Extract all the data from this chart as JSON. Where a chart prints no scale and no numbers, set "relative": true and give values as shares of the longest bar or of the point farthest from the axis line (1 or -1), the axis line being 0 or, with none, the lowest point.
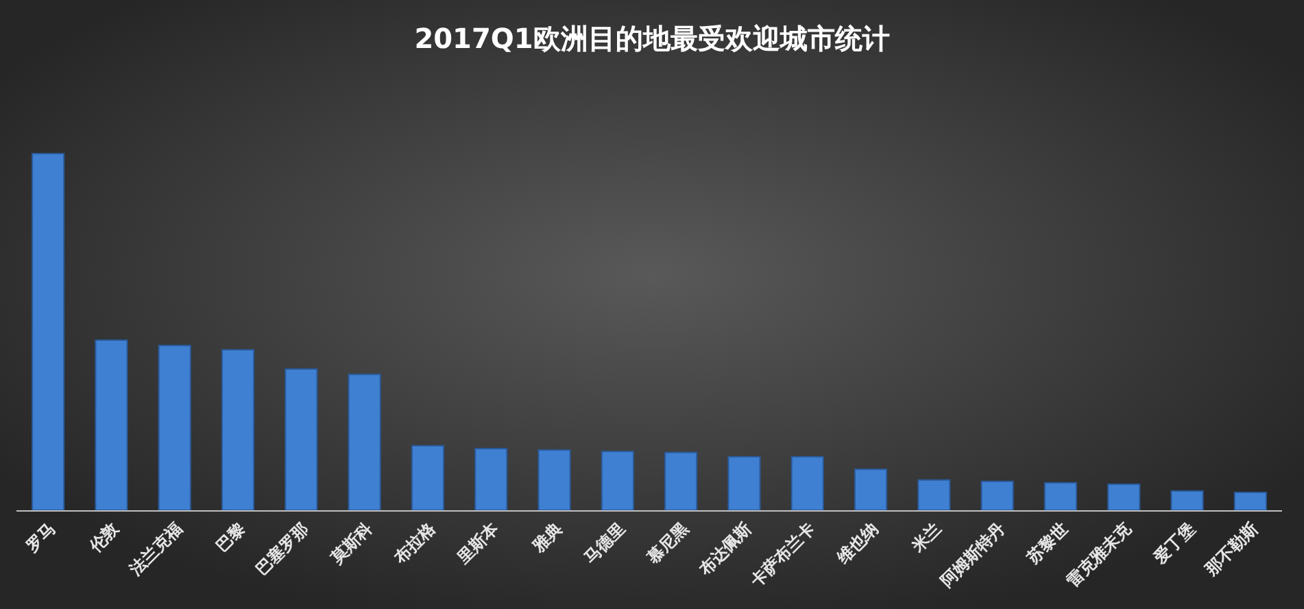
{
  "chart_data": {
    "type": "bar",
    "title": "2017Q1欧洲目的地最受欢迎城市统计",
    "relative": true,
    "color": "#3f80d2",
    "categories": [
      "罗马",
      "伦敦",
      "法兰克福",
      "巴黎",
      "巴塞罗那",
      "莫斯科",
      "布拉格",
      "里斯本",
      "雅典",
      "马德里",
      "慕尼黑",
      "布达佩斯",
      "卡萨布兰卡",
      "维也纳",
      "米兰",
      "阿姆斯特丹",
      "苏黎世",
      "雷克雅未克",
      "爱丁堡",
      "那不勒斯"
    ],
    "values": [
      1,
      0.477,
      0.462,
      0.45,
      0.396,
      0.381,
      0.181,
      0.173,
      0.169,
      0.165,
      0.162,
      0.15,
      0.15,
      0.115,
      0.085,
      0.081,
      0.077,
      0.073,
      0.054,
      0.05
    ]
  }
}
